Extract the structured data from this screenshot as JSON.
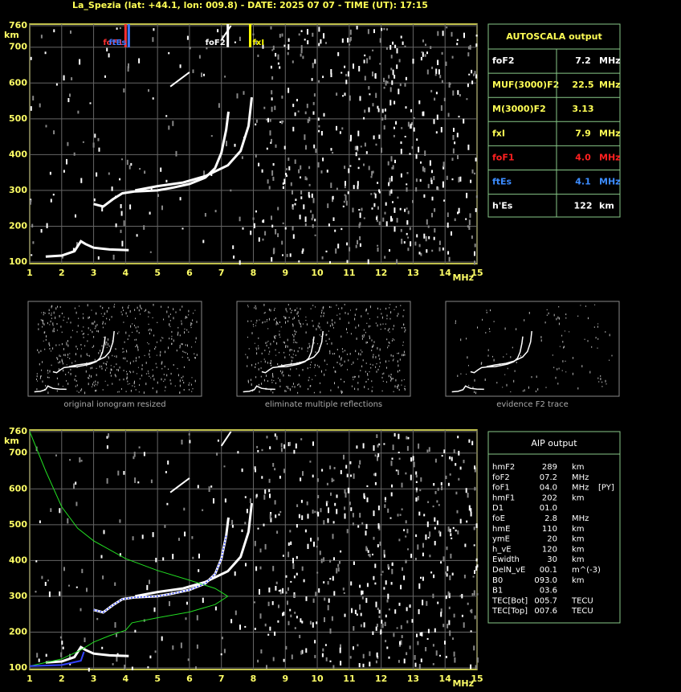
{
  "title": "La_Spezia (lat: +44.1, lon: 009.8) - DATE: 2025 07 07 - TIME (UT): 17:15",
  "ionogram": {
    "y_unit": "km",
    "x_unit": "MHz",
    "ylim": [
      100,
      760
    ],
    "yticks": [
      100,
      200,
      300,
      400,
      500,
      600,
      700,
      760
    ],
    "xlim": [
      1,
      15
    ],
    "xticks": [
      1,
      2,
      3,
      4,
      5,
      6,
      7,
      8,
      9,
      10,
      11,
      12,
      13,
      14,
      15
    ],
    "markers": [
      {
        "label": "foF1",
        "value": 4.0,
        "color": "#ff3030"
      },
      {
        "label": "ftEs",
        "value": 4.1,
        "color": "#3c78ff"
      },
      {
        "label": "foF2",
        "value": 7.2,
        "color": "#ffffff"
      },
      {
        "label": "fxI",
        "value": 7.9,
        "color": "#ffff00"
      }
    ]
  },
  "autoscala": {
    "title": "AUTOSCALA output",
    "rows": [
      {
        "name": "foF2",
        "value": "7.2",
        "unit": "MHz",
        "color": "#ffffff"
      },
      {
        "name": "MUF(3000)F2",
        "value": "22.5",
        "unit": "MHz",
        "color": "#ffff55"
      },
      {
        "name": "M(3000)F2",
        "value": "3.13",
        "unit": "",
        "color": "#ffff55"
      },
      {
        "name": "fxI",
        "value": "7.9",
        "unit": "MHz",
        "color": "#ffff55"
      },
      {
        "name": "foF1",
        "value": "4.0",
        "unit": "MHz",
        "color": "#ff2020"
      },
      {
        "name": "ftEs",
        "value": "4.1",
        "unit": "MHz",
        "color": "#3c8cff"
      },
      {
        "name": "h'Es",
        "value": "122",
        "unit": "km",
        "color": "#ffffff"
      }
    ]
  },
  "thumbnails": [
    "original ionogram resized",
    "eliminate multiple reflections",
    "evidence F2 trace"
  ],
  "aip": {
    "title": "AIP output",
    "rows": [
      {
        "name": "hmF2",
        "value": "289",
        "unit": "km"
      },
      {
        "name": "foF2",
        "value": "07.2",
        "unit": "MHz"
      },
      {
        "name": "foF1",
        "value": "04.0",
        "unit": "MHz",
        "note": "[PY]"
      },
      {
        "name": "hmF1",
        "value": "202",
        "unit": "km"
      },
      {
        "name": "D1",
        "value": "01.0"
      },
      {
        "name": "foE",
        "value": "2.8",
        "unit": "MHz"
      },
      {
        "name": "hmE",
        "value": "110",
        "unit": "km"
      },
      {
        "name": "ymE",
        "value": "20",
        "unit": "km"
      },
      {
        "name": "h_vE",
        "value": "120",
        "unit": "km"
      },
      {
        "name": "Ewidth",
        "value": "30",
        "unit": "km"
      },
      {
        "name": "DelN_vE",
        "value": "00.1",
        "unit": "m^(-3)"
      },
      {
        "name": "B0",
        "value": "093.0",
        "unit": "km"
      },
      {
        "name": "B1",
        "value": "03.6"
      },
      {
        "name": "TEC[Bot]",
        "value": "005.7",
        "unit": "TECU"
      },
      {
        "name": "TEC[Top]",
        "value": "007.6",
        "unit": "TECU"
      }
    ]
  }
}
